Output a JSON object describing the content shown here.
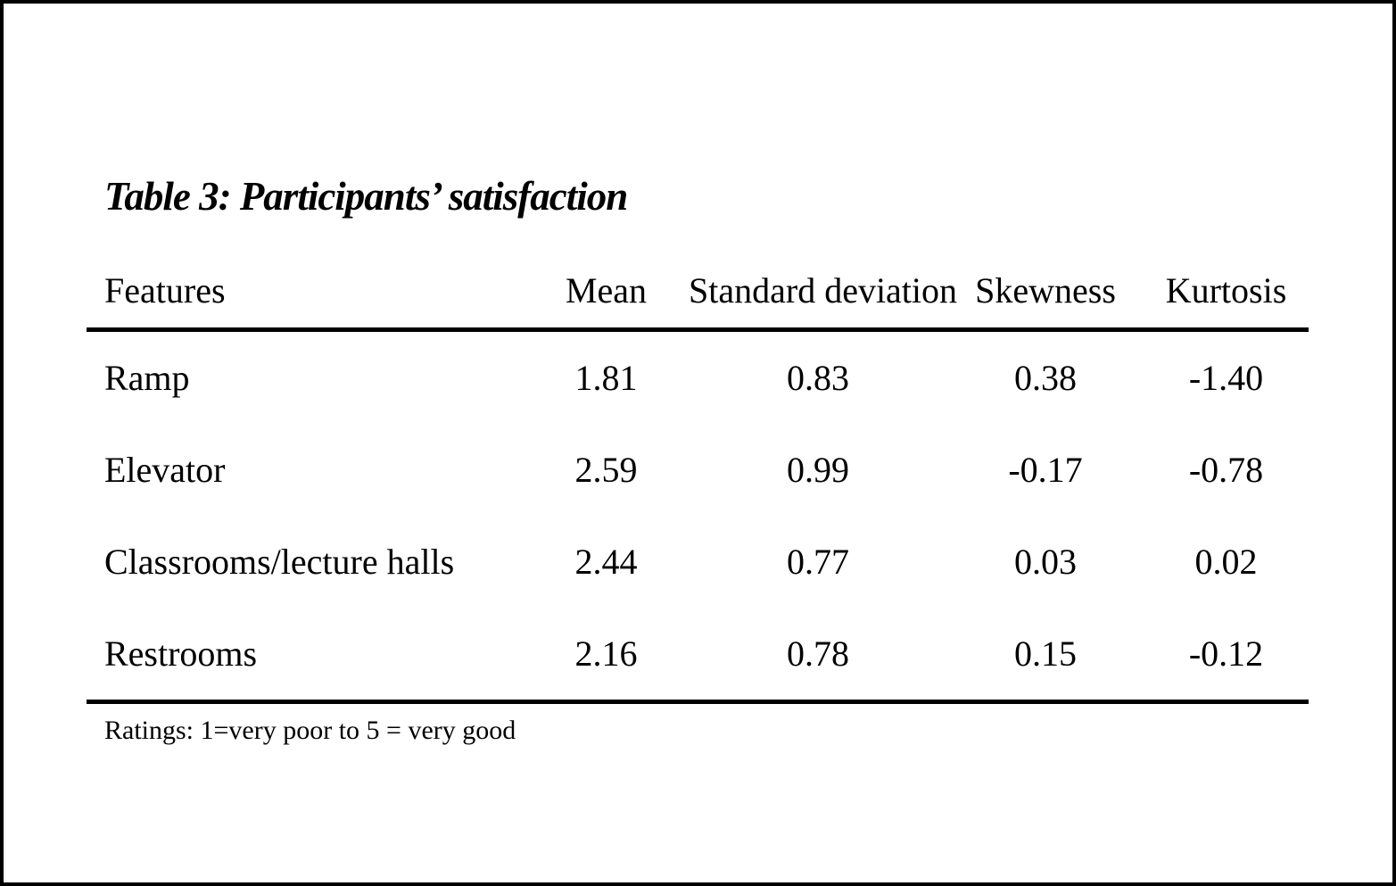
{
  "page": {
    "title": "Table 3: Participants’ satisfaction",
    "footnote": "Ratings: 1=very poor to 5 = very good"
  },
  "table": {
    "columns": [
      "Features",
      "Mean",
      "Standard deviation",
      "Skewness",
      "Kurtosis"
    ],
    "rows": [
      {
        "feature": "Ramp",
        "mean": "1.81",
        "sd": "0.83",
        "skewness": "0.38",
        "kurtosis": "-1.40"
      },
      {
        "feature": "Elevator",
        "mean": "2.59",
        "sd": "0.99",
        "skewness": "-0.17",
        "kurtosis": "-0.78"
      },
      {
        "feature": "Classrooms/lecture halls",
        "mean": "2.44",
        "sd": "0.77",
        "skewness": "0.03",
        "kurtosis": "0.02"
      },
      {
        "feature": "Restrooms",
        "mean": "2.16",
        "sd": "0.78",
        "skewness": "0.15",
        "kurtosis": "-0.12"
      }
    ]
  },
  "chart_data": {
    "type": "table",
    "title": "Table 3: Participants’ satisfaction",
    "columns": [
      "Features",
      "Mean",
      "Standard deviation",
      "Skewness",
      "Kurtosis"
    ],
    "rows": [
      [
        "Ramp",
        1.81,
        0.83,
        0.38,
        -1.4
      ],
      [
        "Elevator",
        2.59,
        0.99,
        -0.17,
        -0.78
      ],
      [
        "Classrooms/lecture halls",
        2.44,
        0.77,
        0.03,
        0.02
      ],
      [
        "Restrooms",
        2.16,
        0.78,
        0.15,
        -0.12
      ]
    ],
    "note": "Ratings: 1=very poor to 5 = very good",
    "colors": {
      "text": "#000000",
      "background": "#ffffff",
      "rules": "#000000"
    }
  }
}
